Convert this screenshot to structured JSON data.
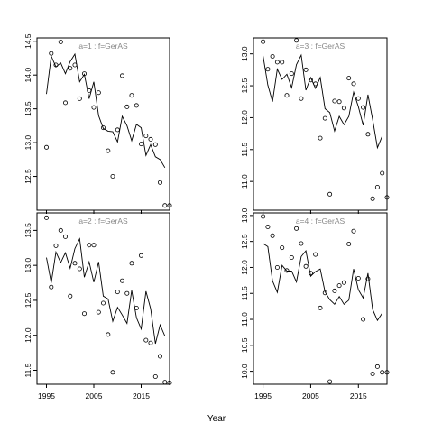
{
  "figure": {
    "xlabel": "Year"
  },
  "chart_data": [
    {
      "type": "scatter",
      "title": "a=1  :  f=GerAS",
      "xlim": [
        1993,
        2021
      ],
      "ylim": [
        12.0,
        14.55
      ],
      "yticks": [
        12.5,
        13.0,
        13.5,
        14.0,
        14.5
      ],
      "xticks": [
        1995,
        2005,
        2015
      ],
      "show_x_tick_labels": false,
      "series": [
        {
          "kind": "points",
          "x": [
            1995,
            1996,
            1997,
            1998,
            1999,
            2000,
            2001,
            2002,
            2003,
            2004,
            2005,
            2006,
            2007,
            2008,
            2009,
            2010,
            2011,
            2012,
            2013,
            2014,
            2015,
            2016,
            2017,
            2018,
            2019,
            2020,
            2021
          ],
          "y": [
            12.93,
            14.32,
            14.15,
            14.49,
            13.59,
            14.1,
            14.15,
            13.65,
            14.02,
            13.77,
            13.52,
            13.74,
            13.22,
            12.88,
            12.5,
            13.19,
            13.99,
            13.53,
            13.7,
            13.55,
            12.98,
            13.1,
            13.05,
            12.97,
            12.41,
            12.07,
            12.07
          ]
        },
        {
          "kind": "line",
          "x": [
            1995,
            1996,
            1997,
            1998,
            1999,
            2000,
            2001,
            2002,
            2003,
            2004,
            2005,
            2006,
            2007,
            2008,
            2009,
            2010,
            2011,
            2012,
            2013,
            2014,
            2015,
            2016,
            2017,
            2018,
            2019,
            2020
          ],
          "y": [
            13.72,
            14.28,
            14.12,
            14.18,
            14.02,
            14.2,
            14.31,
            13.9,
            14.01,
            13.65,
            13.9,
            13.4,
            13.21,
            13.17,
            13.16,
            13.01,
            13.39,
            13.25,
            13.03,
            13.27,
            13.22,
            12.81,
            12.97,
            12.79,
            12.75,
            12.63
          ]
        }
      ]
    },
    {
      "type": "scatter",
      "title": "a=3  :  f=GerAS",
      "xlim": [
        1993,
        2021
      ],
      "ylim": [
        10.55,
        13.25
      ],
      "yticks": [
        11.0,
        11.5,
        12.0,
        12.5,
        13.0
      ],
      "xticks": [
        1995,
        2005,
        2015
      ],
      "show_x_tick_labels": false,
      "series": [
        {
          "kind": "points",
          "x": [
            1995,
            1996,
            1997,
            1998,
            1999,
            2000,
            2001,
            2002,
            2003,
            2004,
            2005,
            2006,
            2007,
            2008,
            2009,
            2010,
            2011,
            2012,
            2013,
            2014,
            2015,
            2016,
            2017,
            2018,
            2019,
            2020,
            2021
          ],
          "y": [
            13.19,
            12.76,
            12.96,
            12.87,
            12.87,
            12.35,
            12.69,
            13.21,
            12.3,
            12.75,
            12.59,
            12.53,
            11.68,
            11.99,
            10.8,
            12.26,
            12.25,
            12.15,
            12.62,
            12.53,
            12.3,
            12.16,
            11.74,
            10.73,
            10.91,
            11.13,
            10.75
          ]
        },
        {
          "kind": "line",
          "x": [
            1995,
            1996,
            1997,
            1998,
            1999,
            2000,
            2001,
            2002,
            2003,
            2004,
            2005,
            2006,
            2007,
            2008,
            2009,
            2010,
            2011,
            2012,
            2013,
            2014,
            2015,
            2016,
            2017,
            2018,
            2019,
            2020
          ],
          "y": [
            12.97,
            12.51,
            12.25,
            12.76,
            12.6,
            12.68,
            12.47,
            12.83,
            12.98,
            12.43,
            12.63,
            12.46,
            12.63,
            12.14,
            12.08,
            11.79,
            12.02,
            11.89,
            12.02,
            12.4,
            12.17,
            11.88,
            12.36,
            11.97,
            11.53,
            11.71
          ]
        }
      ]
    },
    {
      "type": "scatter",
      "title": "a=2  :  f=GerAS",
      "xlim": [
        1993,
        2021
      ],
      "ylim": [
        11.3,
        13.75
      ],
      "yticks": [
        11.5,
        12.0,
        12.5,
        13.0,
        13.5
      ],
      "xticks": [
        1995,
        2005,
        2015
      ],
      "xticklabels": [
        "1995",
        "2005",
        "2015"
      ],
      "show_x_tick_labels": true,
      "series": [
        {
          "kind": "points",
          "x": [
            1995,
            1996,
            1997,
            1998,
            1999,
            2000,
            2001,
            2002,
            2003,
            2004,
            2005,
            2006,
            2007,
            2008,
            2009,
            2010,
            2011,
            2012,
            2013,
            2014,
            2015,
            2016,
            2017,
            2018,
            2019,
            2020,
            2021
          ],
          "y": [
            13.68,
            12.69,
            13.28,
            13.5,
            13.41,
            12.56,
            13.03,
            12.95,
            12.31,
            13.29,
            13.29,
            12.33,
            12.46,
            12.01,
            11.47,
            12.62,
            12.78,
            12.6,
            13.03,
            12.39,
            13.14,
            11.93,
            11.89,
            11.41,
            11.7,
            11.33,
            11.32
          ]
        },
        {
          "kind": "line",
          "x": [
            1995,
            1996,
            1997,
            1998,
            1999,
            2000,
            2001,
            2002,
            2003,
            2004,
            2005,
            2006,
            2007,
            2008,
            2009,
            2010,
            2011,
            2012,
            2013,
            2014,
            2015,
            2016,
            2017,
            2018,
            2019,
            2020
          ],
          "y": [
            13.11,
            12.75,
            13.19,
            13.04,
            13.18,
            12.96,
            13.24,
            13.38,
            12.83,
            13.05,
            12.76,
            13.05,
            12.56,
            12.52,
            12.2,
            12.4,
            12.29,
            12.17,
            12.64,
            12.25,
            12.09,
            12.63,
            12.38,
            11.88,
            12.15,
            11.99
          ]
        }
      ]
    },
    {
      "type": "scatter",
      "title": "a=4  :  f=GerAS",
      "xlim": [
        1993,
        2021
      ],
      "ylim": [
        9.75,
        13.05
      ],
      "yticks": [
        10.0,
        10.5,
        11.0,
        11.5,
        12.0,
        12.5,
        13.0
      ],
      "xticks": [
        1995,
        2005,
        2015
      ],
      "xticklabels": [
        "1995",
        "2005",
        "2015"
      ],
      "show_x_tick_labels": true,
      "series": [
        {
          "kind": "points",
          "x": [
            1995,
            1996,
            1997,
            1998,
            1999,
            2000,
            2001,
            2002,
            2003,
            2004,
            2005,
            2006,
            2007,
            2008,
            2009,
            2010,
            2011,
            2012,
            2013,
            2014,
            2015,
            2016,
            2017,
            2018,
            2019,
            2020,
            2021
          ],
          "y": [
            12.98,
            12.78,
            12.61,
            12.0,
            12.38,
            11.94,
            12.19,
            12.75,
            12.46,
            12.02,
            11.89,
            12.25,
            11.22,
            11.51,
            9.8,
            11.55,
            11.65,
            11.71,
            12.45,
            12.7,
            11.79,
            11.0,
            11.78,
            9.95,
            10.09,
            9.98,
            9.98
          ]
        },
        {
          "kind": "line",
          "x": [
            1995,
            1996,
            1997,
            1998,
            1999,
            2000,
            2001,
            2002,
            2003,
            2004,
            2005,
            2006,
            2007,
            2008,
            2009,
            2010,
            2011,
            2012,
            2013,
            2014,
            2015,
            2016,
            2017,
            2018,
            2019,
            2020
          ],
          "y": [
            12.46,
            12.4,
            11.74,
            11.52,
            12.04,
            11.93,
            11.93,
            11.72,
            12.21,
            12.32,
            11.83,
            11.92,
            11.97,
            11.53,
            11.38,
            11.29,
            11.44,
            11.29,
            11.37,
            11.97,
            11.57,
            11.41,
            11.89,
            11.19,
            10.98,
            11.12
          ]
        }
      ]
    }
  ]
}
